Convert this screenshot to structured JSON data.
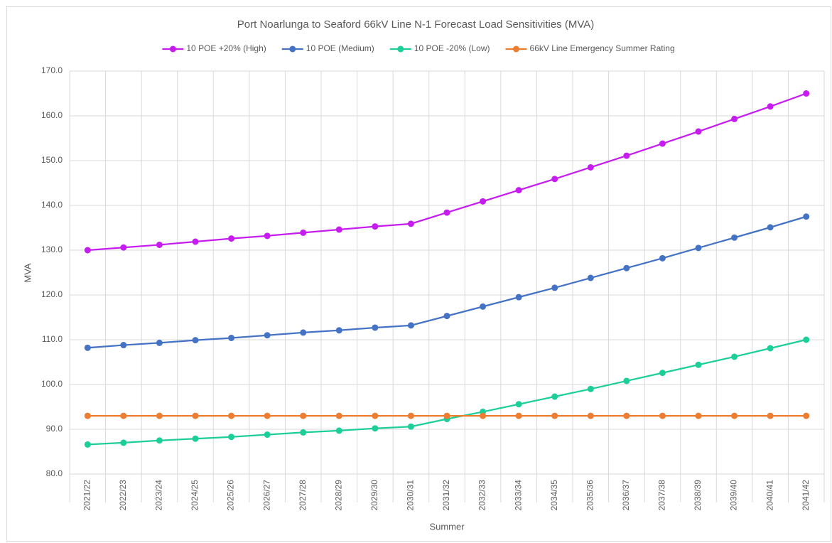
{
  "chart_data": {
    "type": "line",
    "title": "Port Noarlunga to Seaford 66kV Line N-1 Forecast Load Sensitivities (MVA)",
    "x_label": "Summer",
    "y_label": "MVA",
    "categories": [
      "2021/22",
      "2022/23",
      "2023/24",
      "2024/25",
      "2025/26",
      "2026/27",
      "2027/28",
      "2028/29",
      "2029/30",
      "2030/31",
      "2031/32",
      "2032/33",
      "2033/34",
      "2034/35",
      "2035/36",
      "2036/37",
      "2037/38",
      "2038/39",
      "2039/40",
      "2040/41",
      "2041/42"
    ],
    "series": [
      {
        "name": "10 POE +20% (High)",
        "color": "#c61cf0",
        "values": [
          130.0,
          130.6,
          131.2,
          131.9,
          132.6,
          133.2,
          133.9,
          134.6,
          135.3,
          135.9,
          138.4,
          140.9,
          143.4,
          145.9,
          148.5,
          151.1,
          153.8,
          156.5,
          159.3,
          162.1,
          165.0
        ]
      },
      {
        "name": "10 POE (Medium)",
        "color": "#4472c4",
        "values": [
          108.2,
          108.8,
          109.3,
          109.9,
          110.4,
          111.0,
          111.6,
          112.1,
          112.7,
          113.2,
          115.3,
          117.4,
          119.5,
          121.6,
          123.8,
          126.0,
          128.2,
          130.5,
          132.8,
          135.1,
          137.5
        ]
      },
      {
        "name": "10 POE -20% (Low)",
        "color": "#1ccf98",
        "values": [
          86.6,
          87.0,
          87.5,
          87.9,
          88.3,
          88.8,
          89.3,
          89.7,
          90.2,
          90.6,
          92.3,
          93.9,
          95.6,
          97.3,
          99.0,
          100.8,
          102.6,
          104.4,
          106.2,
          108.1,
          110.0
        ]
      },
      {
        "name": "66kV Line Emergency Summer Rating",
        "color": "#ed7d31",
        "values": [
          93,
          93,
          93,
          93,
          93,
          93,
          93,
          93,
          93,
          93,
          93,
          93,
          93,
          93,
          93,
          93,
          93,
          93,
          93,
          93,
          93
        ]
      }
    ],
    "ylim": [
      80,
      170
    ],
    "yticks": [
      {
        "value": 80,
        "label": "80.0"
      },
      {
        "value": 90,
        "label": "90.0"
      },
      {
        "value": 100,
        "label": "100.0"
      },
      {
        "value": 110,
        "label": "110.0"
      },
      {
        "value": 120,
        "label": "120.0"
      },
      {
        "value": 130,
        "label": "130.0"
      },
      {
        "value": 140,
        "label": "140.0"
      },
      {
        "value": 150,
        "label": "150.0"
      },
      {
        "value": 160,
        "label": "160.0"
      },
      {
        "value": 170,
        "label": "170.0"
      }
    ],
    "grid": true,
    "legend": "top"
  }
}
